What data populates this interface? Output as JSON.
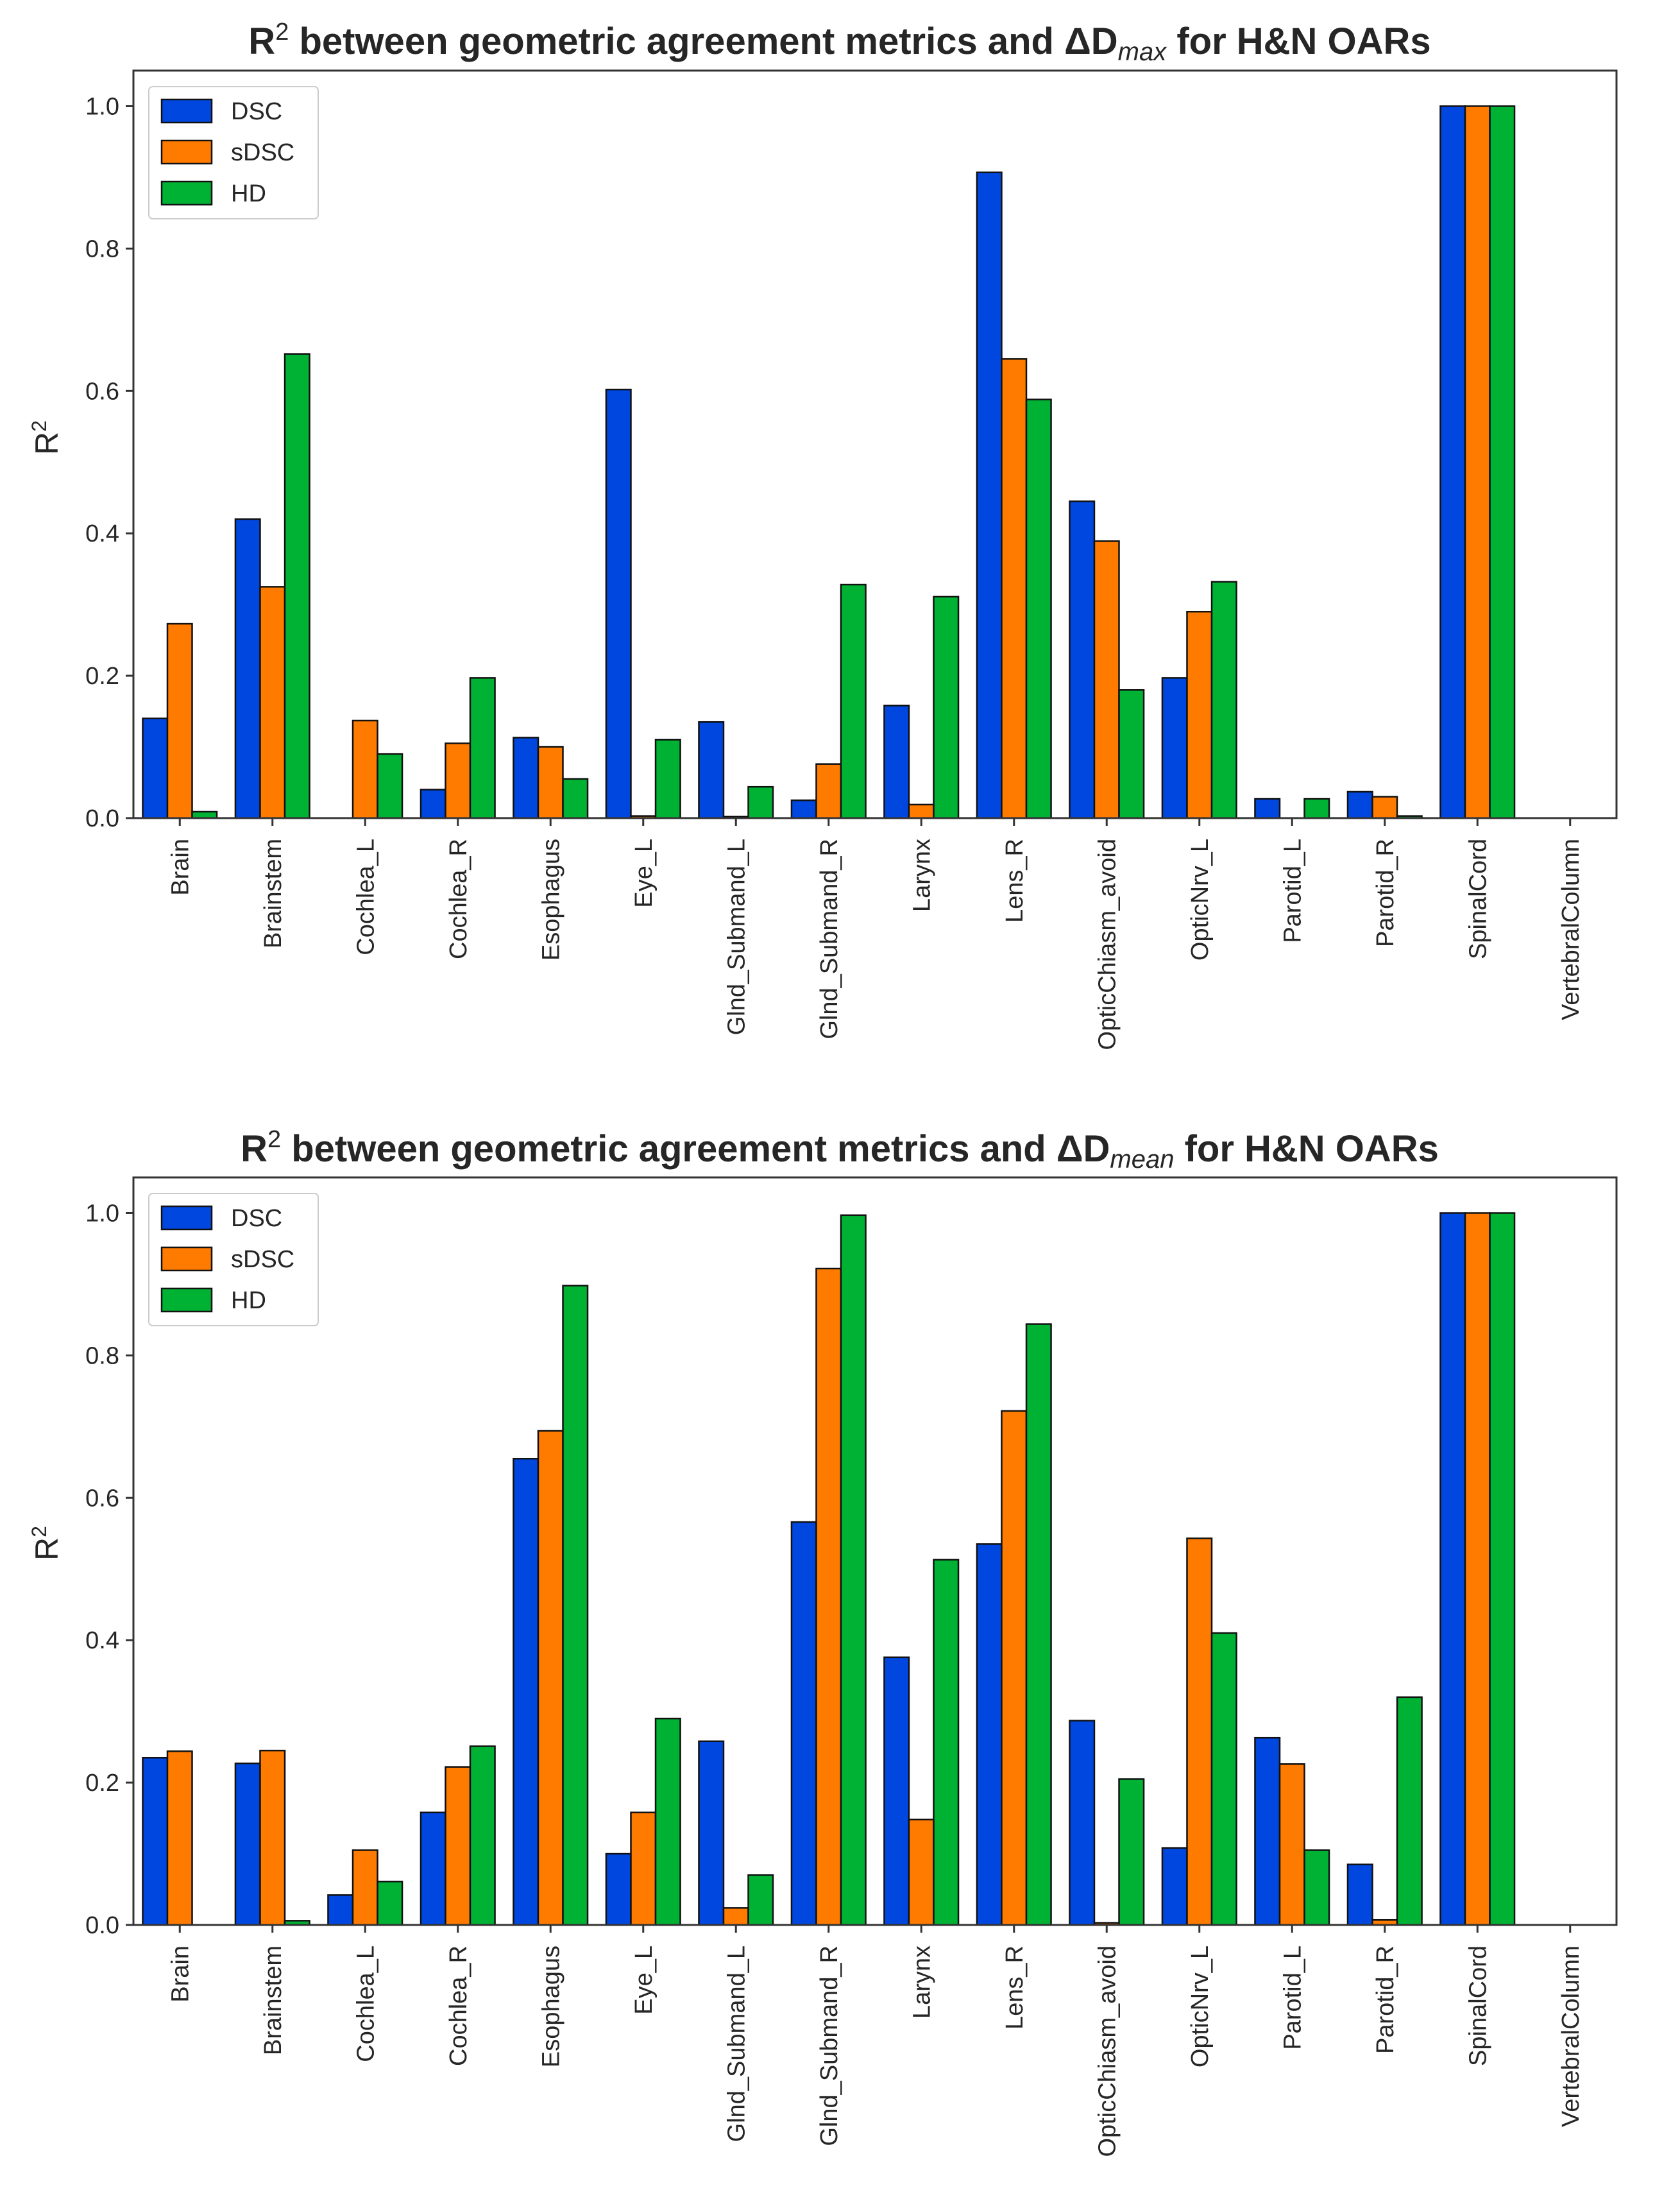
{
  "colors": {
    "DSC": "#0047e0",
    "sDSC": "#ff7b00",
    "HD": "#00b233"
  },
  "chart_data": [
    {
      "type": "bar",
      "title_main": "R",
      "title_sup": "2",
      "title_rest": " between geometric agreement metrics and ΔD",
      "title_sub": "max",
      "title_end": " for H&N OARs",
      "ylabel_main": "R",
      "ylabel_sup": "2",
      "ylim": [
        0,
        1.05
      ],
      "yticks": [
        "0.0",
        "0.2",
        "0.4",
        "0.6",
        "0.8",
        "1.0"
      ],
      "legend_position": "top-left",
      "categories": [
        "Brain",
        "Brainstem",
        "Cochlea_L",
        "Cochlea_R",
        "Esophagus",
        "Eye_L",
        "Glnd_Submand_L",
        "Glnd_Submand_R",
        "Larynx",
        "Lens_R",
        "OpticChiasm_avoid",
        "OpticNrv_L",
        "Parotid_L",
        "Parotid_R",
        "SpinalCord",
        "VertebralColumn"
      ],
      "series": [
        {
          "name": "DSC",
          "values": [
            0.14,
            0.42,
            0.0,
            0.04,
            0.113,
            0.602,
            0.135,
            0.025,
            0.158,
            0.907,
            0.445,
            0.197,
            0.027,
            0.037,
            1.0,
            0.0
          ]
        },
        {
          "name": "sDSC",
          "values": [
            0.273,
            0.325,
            0.137,
            0.105,
            0.1,
            0.003,
            0.002,
            0.076,
            0.019,
            0.645,
            0.389,
            0.29,
            0.0,
            0.03,
            1.0,
            0.0
          ]
        },
        {
          "name": "HD",
          "values": [
            0.009,
            0.652,
            0.09,
            0.197,
            0.055,
            0.11,
            0.044,
            0.328,
            0.311,
            0.588,
            0.18,
            0.332,
            0.027,
            0.003,
            1.0,
            0.0
          ]
        }
      ]
    },
    {
      "type": "bar",
      "title_main": "R",
      "title_sup": "2",
      "title_rest": " between geometric agreement metrics and ΔD",
      "title_sub": "mean",
      "title_end": " for H&N OARs",
      "ylabel_main": "R",
      "ylabel_sup": "2",
      "ylim": [
        0,
        1.05
      ],
      "yticks": [
        "0.0",
        "0.2",
        "0.4",
        "0.6",
        "0.8",
        "1.0"
      ],
      "legend_position": "top-left",
      "categories": [
        "Brain",
        "Brainstem",
        "Cochlea_L",
        "Cochlea_R",
        "Esophagus",
        "Eye_L",
        "Glnd_Submand_L",
        "Glnd_Submand_R",
        "Larynx",
        "Lens_R",
        "OpticChiasm_avoid",
        "OpticNrv_L",
        "Parotid_L",
        "Parotid_R",
        "SpinalCord",
        "VertebralColumn"
      ],
      "series": [
        {
          "name": "DSC",
          "values": [
            0.235,
            0.227,
            0.042,
            0.158,
            0.655,
            0.1,
            0.258,
            0.566,
            0.376,
            0.535,
            0.287,
            0.108,
            0.263,
            0.085,
            1.0,
            0.0
          ]
        },
        {
          "name": "sDSC",
          "values": [
            0.244,
            0.245,
            0.105,
            0.222,
            0.694,
            0.158,
            0.024,
            0.922,
            0.148,
            0.722,
            0.003,
            0.543,
            0.226,
            0.007,
            1.0,
            0.0
          ]
        },
        {
          "name": "HD",
          "values": [
            0.0,
            0.006,
            0.061,
            0.251,
            0.898,
            0.29,
            0.07,
            0.997,
            0.513,
            0.844,
            0.205,
            0.41,
            0.105,
            0.32,
            1.0,
            0.0
          ]
        }
      ]
    }
  ]
}
